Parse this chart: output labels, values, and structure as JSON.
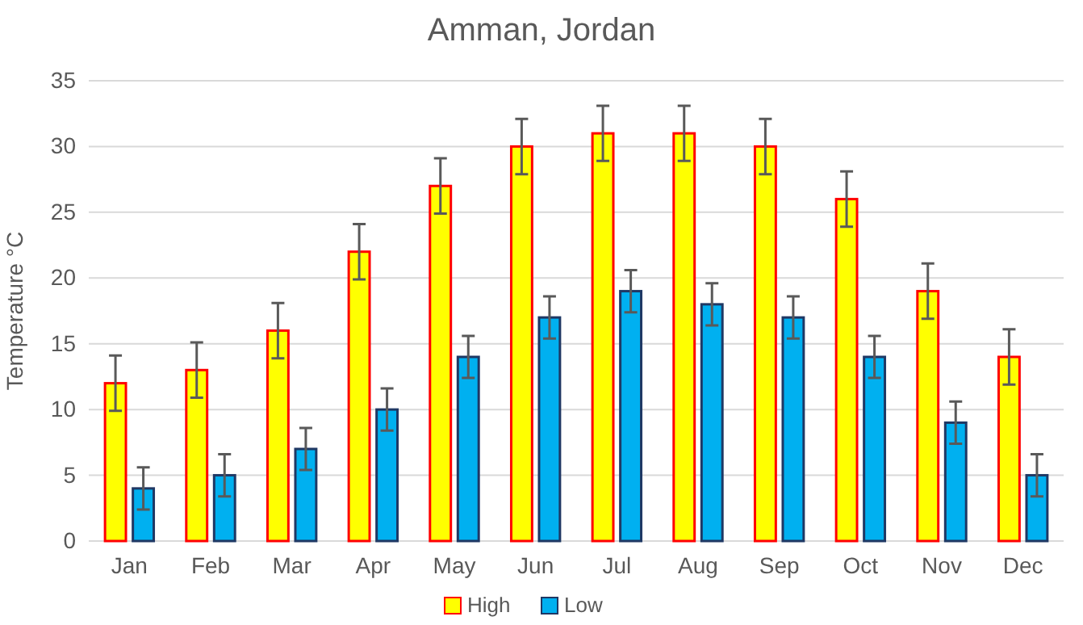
{
  "chart_data": {
    "type": "bar",
    "title": "Amman, Jordan",
    "ylabel": "Temperature °C",
    "categories": [
      "Jan",
      "Feb",
      "Mar",
      "Apr",
      "May",
      "Jun",
      "Jul",
      "Aug",
      "Sep",
      "Oct",
      "Nov",
      "Dec"
    ],
    "series": [
      {
        "name": "High",
        "color": "#ffff00",
        "values": [
          12,
          13,
          16,
          22,
          27,
          30,
          31,
          31,
          30,
          26,
          19,
          14
        ],
        "errors": [
          2.1,
          2.1,
          2.1,
          2.1,
          2.1,
          2.1,
          2.1,
          2.1,
          2.1,
          2.1,
          2.1,
          2.1
        ]
      },
      {
        "name": "Low",
        "color": "#00b0f0",
        "values": [
          4,
          5,
          7,
          10,
          14,
          17,
          19,
          18,
          17,
          14,
          9,
          5
        ],
        "errors": [
          1.6,
          1.6,
          1.6,
          1.6,
          1.6,
          1.6,
          1.6,
          1.6,
          1.6,
          1.6,
          1.6,
          1.6
        ]
      }
    ],
    "ylim": [
      0,
      35
    ],
    "yticks": [
      0,
      5,
      10,
      15,
      20,
      25,
      30,
      35
    ],
    "grid": "y",
    "legend": "bottom"
  }
}
